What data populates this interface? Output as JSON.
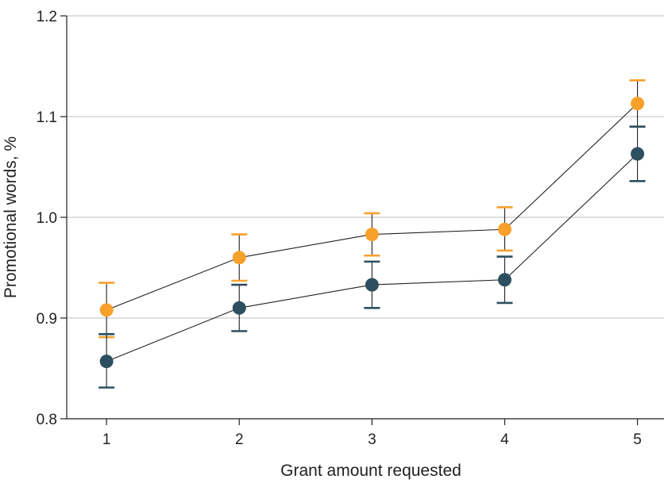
{
  "chart_data": {
    "type": "line",
    "xlabel": "Grant amount requested",
    "ylabel": "Promotional words, %",
    "x": [
      1,
      2,
      3,
      4,
      5
    ],
    "x_tick_labels": [
      "1",
      "2",
      "3",
      "4",
      "5"
    ],
    "y_tick_labels": [
      "0.8",
      "0.9",
      "1.0",
      "1.1",
      "1.2"
    ],
    "y_ticks": [
      0.8,
      0.9,
      1.0,
      1.1,
      1.2
    ],
    "ylim": [
      0.8,
      1.2
    ],
    "xlim": [
      0.7,
      5.2
    ],
    "grid": "horizontal",
    "series": [
      {
        "color": "#f7a12b",
        "values": [
          0.908,
          0.96,
          0.983,
          0.988,
          1.113
        ],
        "err_low": [
          0.881,
          0.937,
          0.962,
          0.967,
          1.09
        ],
        "err_high": [
          0.935,
          0.983,
          1.004,
          1.01,
          1.136
        ]
      },
      {
        "color": "#2d4f5f",
        "values": [
          0.857,
          0.91,
          0.933,
          0.938,
          1.063
        ],
        "err_low": [
          0.831,
          0.887,
          0.91,
          0.915,
          1.036
        ],
        "err_high": [
          0.884,
          0.933,
          0.956,
          0.961,
          1.09
        ]
      }
    ]
  }
}
